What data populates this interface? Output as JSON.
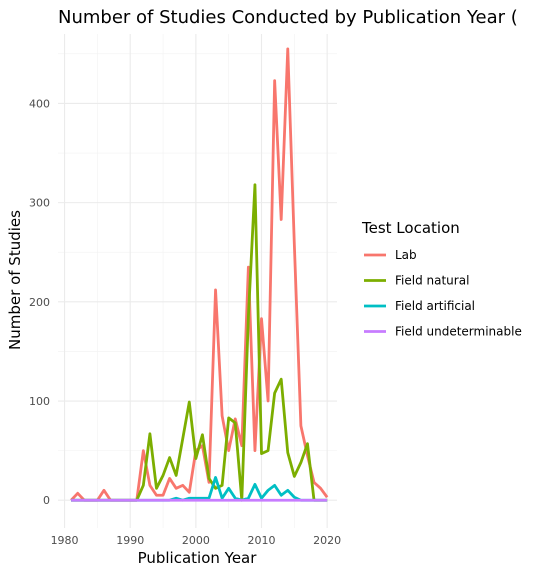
{
  "chart_data": {
    "type": "line",
    "title": "Number of Studies Conducted by Publication Year (",
    "xlabel": "Publication Year",
    "ylabel": "Number of Studies",
    "xlim": [
      1979,
      2021.5
    ],
    "ylim": [
      -28,
      470
    ],
    "x_ticks": [
      1980,
      1990,
      2000,
      2010,
      2020
    ],
    "y_ticks": [
      0,
      100,
      200,
      300,
      400
    ],
    "grid": true,
    "legend_title": "Test Location",
    "legend_position": "right",
    "series": [
      {
        "name": "Lab",
        "color": "#F8766D",
        "points": [
          [
            1981,
            0
          ],
          [
            1982,
            7
          ],
          [
            1983,
            0
          ],
          [
            1984,
            0
          ],
          [
            1985,
            0
          ],
          [
            1986,
            10
          ],
          [
            1987,
            0
          ],
          [
            1988,
            0
          ],
          [
            1989,
            0
          ],
          [
            1990,
            0
          ],
          [
            1991,
            0
          ],
          [
            1992,
            50
          ],
          [
            1993,
            15
          ],
          [
            1994,
            5
          ],
          [
            1995,
            5
          ],
          [
            1996,
            22
          ],
          [
            1997,
            12
          ],
          [
            1998,
            15
          ],
          [
            1999,
            8
          ],
          [
            2000,
            50
          ],
          [
            2001,
            55
          ],
          [
            2002,
            18
          ],
          [
            2003,
            212
          ],
          [
            2004,
            85
          ],
          [
            2005,
            50
          ],
          [
            2006,
            82
          ],
          [
            2007,
            55
          ],
          [
            2008,
            235
          ],
          [
            2009,
            50
          ],
          [
            2010,
            183
          ],
          [
            2011,
            100
          ],
          [
            2012,
            423
          ],
          [
            2013,
            283
          ],
          [
            2014,
            455
          ],
          [
            2015,
            258
          ],
          [
            2016,
            75
          ],
          [
            2017,
            45
          ],
          [
            2018,
            18
          ],
          [
            2019,
            12
          ],
          [
            2020,
            3
          ]
        ]
      },
      {
        "name": "Field natural",
        "color": "#7CAE00",
        "points": [
          [
            1981,
            0
          ],
          [
            1982,
            0
          ],
          [
            1983,
            0
          ],
          [
            1984,
            0
          ],
          [
            1985,
            0
          ],
          [
            1986,
            0
          ],
          [
            1987,
            0
          ],
          [
            1988,
            0
          ],
          [
            1989,
            0
          ],
          [
            1990,
            0
          ],
          [
            1991,
            0
          ],
          [
            1992,
            15
          ],
          [
            1993,
            67
          ],
          [
            1994,
            12
          ],
          [
            1995,
            25
          ],
          [
            1996,
            43
          ],
          [
            1997,
            25
          ],
          [
            1998,
            62
          ],
          [
            1999,
            99
          ],
          [
            2000,
            42
          ],
          [
            2001,
            66
          ],
          [
            2002,
            22
          ],
          [
            2003,
            12
          ],
          [
            2004,
            15
          ],
          [
            2005,
            83
          ],
          [
            2006,
            78
          ],
          [
            2007,
            0
          ],
          [
            2008,
            185
          ],
          [
            2009,
            318
          ],
          [
            2010,
            47
          ],
          [
            2011,
            50
          ],
          [
            2012,
            108
          ],
          [
            2013,
            122
          ],
          [
            2014,
            48
          ],
          [
            2015,
            24
          ],
          [
            2016,
            38
          ],
          [
            2017,
            57
          ],
          [
            2018,
            0
          ],
          [
            2019,
            0
          ],
          [
            2020,
            0
          ]
        ]
      },
      {
        "name": "Field artificial",
        "color": "#00BFC4",
        "points": [
          [
            1981,
            0
          ],
          [
            1982,
            0
          ],
          [
            1983,
            0
          ],
          [
            1984,
            0
          ],
          [
            1985,
            0
          ],
          [
            1986,
            0
          ],
          [
            1987,
            0
          ],
          [
            1988,
            0
          ],
          [
            1989,
            0
          ],
          [
            1990,
            0
          ],
          [
            1991,
            0
          ],
          [
            1992,
            0
          ],
          [
            1993,
            0
          ],
          [
            1994,
            0
          ],
          [
            1995,
            0
          ],
          [
            1996,
            0
          ],
          [
            1997,
            2
          ],
          [
            1998,
            0
          ],
          [
            1999,
            2
          ],
          [
            2000,
            2
          ],
          [
            2001,
            2
          ],
          [
            2002,
            2
          ],
          [
            2003,
            23
          ],
          [
            2004,
            2
          ],
          [
            2005,
            12
          ],
          [
            2006,
            2
          ],
          [
            2007,
            0
          ],
          [
            2008,
            2
          ],
          [
            2009,
            16
          ],
          [
            2010,
            2
          ],
          [
            2011,
            10
          ],
          [
            2012,
            15
          ],
          [
            2013,
            5
          ],
          [
            2014,
            10
          ],
          [
            2015,
            3
          ],
          [
            2016,
            0
          ],
          [
            2017,
            0
          ],
          [
            2018,
            0
          ],
          [
            2019,
            0
          ],
          [
            2020,
            0
          ]
        ]
      },
      {
        "name": "Field undeterminable",
        "color": "#C77CFF",
        "points": [
          [
            1981,
            0
          ],
          [
            1985,
            0
          ],
          [
            1990,
            0
          ],
          [
            1995,
            0
          ],
          [
            2000,
            0
          ],
          [
            2005,
            0
          ],
          [
            2010,
            0
          ],
          [
            2015,
            0
          ],
          [
            2020,
            0
          ]
        ]
      }
    ]
  }
}
